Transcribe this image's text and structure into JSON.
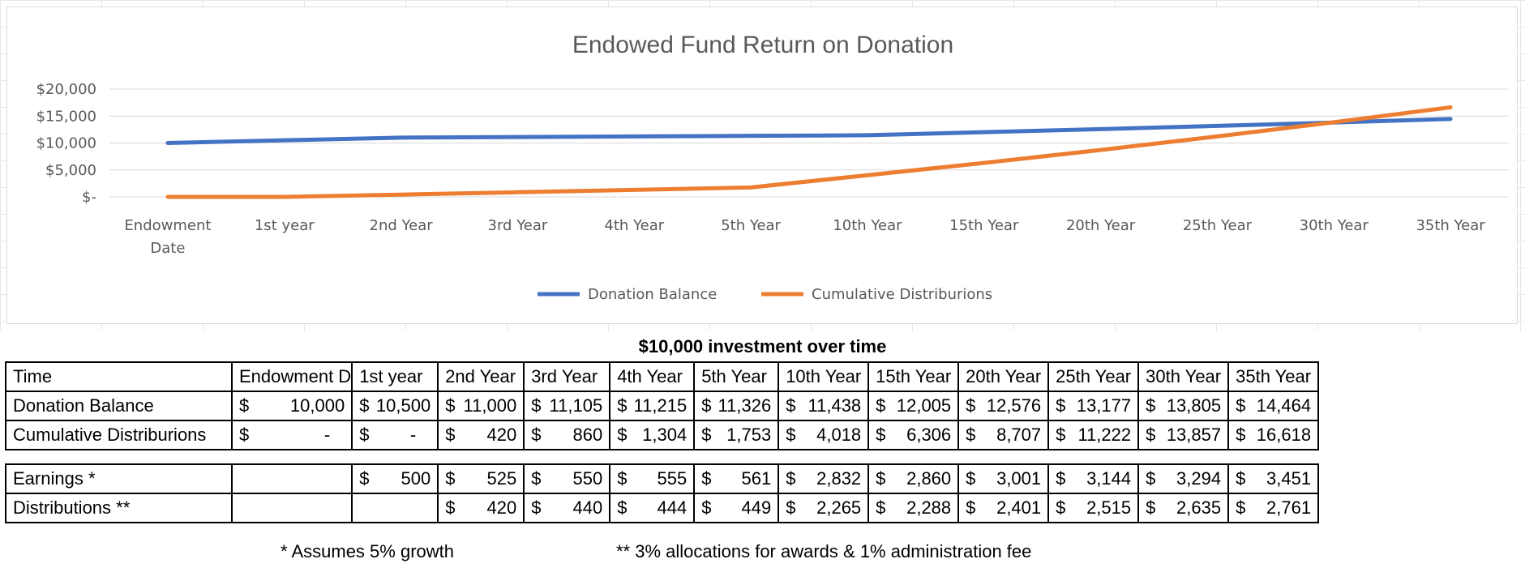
{
  "chart_data": {
    "type": "line",
    "title": "Endowed Fund Return on Donation",
    "categories": [
      "Endowment Date",
      "1st year",
      "2nd Year",
      "3rd Year",
      "4th Year",
      "5th Year",
      "10th Year",
      "15th Year",
      "20th Year",
      "25th Year",
      "30th Year",
      "35th Year"
    ],
    "series": [
      {
        "name": "Donation Balance",
        "color": "#4472C4",
        "values": [
          10000,
          10500,
          11000,
          11105,
          11215,
          11326,
          11438,
          12005,
          12576,
          13177,
          13805,
          14464
        ]
      },
      {
        "name": "Cumulative Distriburions",
        "color": "#ED7D31",
        "values": [
          0,
          0,
          420,
          860,
          1304,
          1753,
          4018,
          6306,
          8707,
          11222,
          13857,
          16618
        ]
      }
    ],
    "yticks": [
      "$-",
      "$5,000",
      "$10,000",
      "$15,000",
      "$20,000"
    ],
    "ylim": [
      0,
      20000
    ],
    "legend": "bottom",
    "grid": true
  },
  "table": {
    "caption": "$10,000 investment over time",
    "header": [
      "Time",
      "Endowment D",
      "1st year",
      "2nd Year",
      "3rd Year",
      "4th Year",
      "5th Year",
      "10th Year",
      "15th Year",
      "20th Year",
      "25th Year",
      "30th Year",
      "35th Year"
    ],
    "rows": [
      {
        "label": "Donation Balance",
        "cells": [
          "10,000",
          "10,500",
          "11,000",
          "11,105",
          "11,215",
          "11,326",
          "11,438",
          "12,005",
          "12,576",
          "13,177",
          "13,805",
          "14,464"
        ]
      },
      {
        "label": "Cumulative Distriburions",
        "cells": [
          "-",
          "-",
          "420",
          "860",
          "1,304",
          "1,753",
          "4,018",
          "6,306",
          "8,707",
          "11,222",
          "13,857",
          "16,618"
        ]
      },
      {
        "label": "Earnings *",
        "cells": [
          "",
          "500",
          "525",
          "550",
          "555",
          "561",
          "2,832",
          "2,860",
          "3,001",
          "3,144",
          "3,294",
          "3,451"
        ]
      },
      {
        "label": "Distributions **",
        "cells": [
          "",
          "",
          "420",
          "440",
          "444",
          "449",
          "2,265",
          "2,288",
          "2,401",
          "2,515",
          "2,635",
          "2,761"
        ]
      }
    ],
    "currency_symbol": "$",
    "note_growth": "* Assumes 5% growth",
    "note_fees": "** 3% allocations for awards & 1% administration fee"
  }
}
